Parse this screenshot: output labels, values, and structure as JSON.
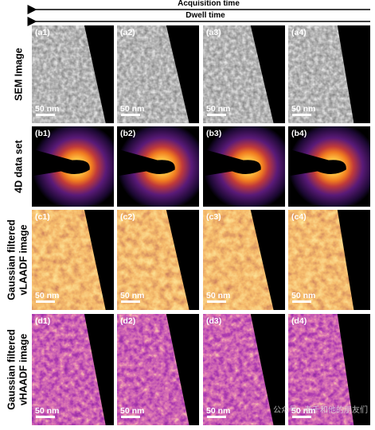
{
  "header": {
    "acquisition_time": "Acquisition time",
    "dwell_time": "Dwell time"
  },
  "rows": [
    {
      "label": [
        "SEM Image"
      ],
      "panels": [
        {
          "label": "(a1)",
          "scale_bar": "50 nm"
        },
        {
          "label": "(a2)",
          "scale_bar": "50 nm"
        },
        {
          "label": "(a3)",
          "scale_bar": "50 nm"
        },
        {
          "label": "(a4)",
          "scale_bar": "50 nm"
        }
      ]
    },
    {
      "label": [
        "4D data set"
      ],
      "panels": [
        {
          "label": "(b1)"
        },
        {
          "label": "(b2)"
        },
        {
          "label": "(b3)"
        },
        {
          "label": "(b4)"
        }
      ]
    },
    {
      "label": [
        "Gaussian filtered",
        "vLAADF image"
      ],
      "panels": [
        {
          "label": "(c1)",
          "scale_bar": "50 nm"
        },
        {
          "label": "(c2)",
          "scale_bar": "50 nm"
        },
        {
          "label": "(c3)",
          "scale_bar": "50 nm"
        },
        {
          "label": "(c4)",
          "scale_bar": "50 nm"
        }
      ]
    },
    {
      "label": [
        "Gaussian filtered",
        "vHAADF image"
      ],
      "panels": [
        {
          "label": "(d1)",
          "scale_bar": "50 nm"
        },
        {
          "label": "(d2)",
          "scale_bar": "50 nm"
        },
        {
          "label": "(d3)",
          "scale_bar": "50 nm"
        },
        {
          "label": "(d4)",
          "scale_bar": "50 nm"
        }
      ]
    }
  ],
  "watermark": "公众号 · 老千和他的朋友们"
}
